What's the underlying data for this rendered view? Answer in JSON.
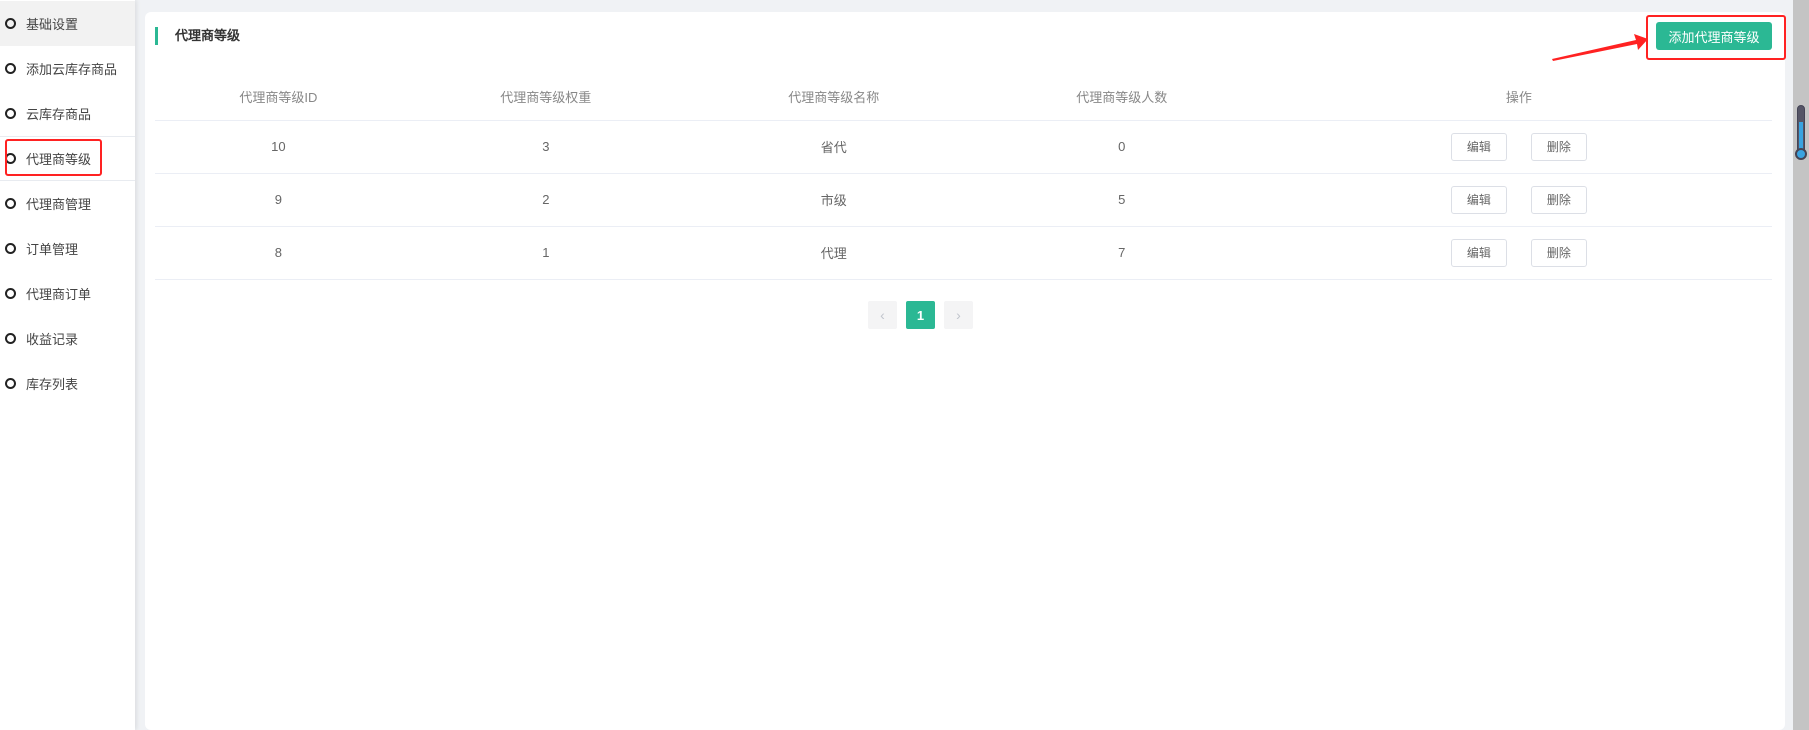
{
  "sidebar": {
    "items": [
      {
        "label": "基础设置"
      },
      {
        "label": "添加云库存商品"
      },
      {
        "label": "云库存商品"
      },
      {
        "label": "代理商等级"
      },
      {
        "label": "代理商管理"
      },
      {
        "label": "订单管理"
      },
      {
        "label": "代理商订单"
      },
      {
        "label": "收益记录"
      },
      {
        "label": "库存列表"
      }
    ]
  },
  "main": {
    "title": "代理商等级",
    "add_button": "添加代理商等级",
    "columns": [
      "代理商等级ID",
      "代理商等级权重",
      "代理商等级名称",
      "代理商等级人数",
      "操作"
    ],
    "rows": [
      {
        "id": "10",
        "weight": "3",
        "name": "省代",
        "count": "0",
        "edit": "编辑",
        "delete": "删除"
      },
      {
        "id": "9",
        "weight": "2",
        "name": "市级",
        "count": "5",
        "edit": "编辑",
        "delete": "删除"
      },
      {
        "id": "8",
        "weight": "1",
        "name": "代理",
        "count": "7",
        "edit": "编辑",
        "delete": "删除"
      }
    ],
    "pagination": {
      "prev": "‹",
      "current": "1",
      "next": "›"
    }
  },
  "colors": {
    "accent": "#2bb894",
    "annotation": "#ff2222"
  }
}
